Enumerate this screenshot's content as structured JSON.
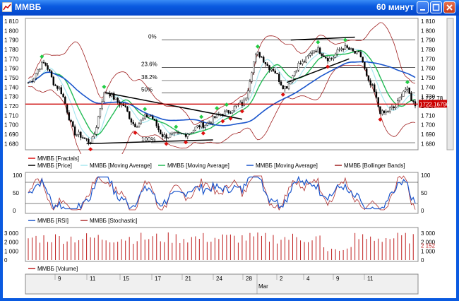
{
  "window": {
    "title": "ММВБ",
    "period": "60 минут",
    "buttons": [
      "minimize",
      "maximize",
      "close"
    ]
  },
  "colors": {
    "price_candles": "#000000",
    "ma_light": "#a8e8f0",
    "ma_green": "#22bb55",
    "ma_blue": "#1a55cc",
    "bollinger": "#a02020",
    "fractal_up": "#22cc44",
    "fractal_down": "#dd1111",
    "support_line": "#cc0000",
    "rsi": "#1a55cc",
    "stochastic": "#b03030",
    "volume": "#c02020"
  },
  "main_panel": {
    "y_axis_ticks": [
      "1 810",
      "1 800",
      "1 790",
      "1 780",
      "1 770",
      "1 760",
      "1 750",
      "1 740",
      "1 730",
      "1 720",
      "1 710",
      "1 700",
      "1 690",
      "1 680"
    ],
    "last_price_label": "1 722.78",
    "crosshair_label": "1722.16796",
    "fibo_levels": [
      "0%",
      "23.6%",
      "38.2%",
      "50%",
      "100%"
    ],
    "legend": [
      {
        "label": "ММВБ [Fractals]"
      },
      {
        "label": "ММВБ [Price]"
      },
      {
        "label": "ММВБ [Moving Average]"
      },
      {
        "label": "ММВБ [Moving Average]"
      },
      {
        "label": "ММВБ [Moving Average]"
      },
      {
        "label": "ММВБ [Bollinger Bands]"
      }
    ]
  },
  "osc_panel": {
    "y_axis_ticks": [
      "100",
      "50",
      "0"
    ],
    "legend": [
      {
        "label": "ММВБ [RSI]"
      },
      {
        "label": "ММВБ [Stochastic]"
      }
    ]
  },
  "volume_panel": {
    "y_axis_ticks": [
      "3 000",
      "2 000",
      "1 000",
      "0"
    ],
    "last_value_label": "2 152",
    "legend": [
      {
        "label": "ММВБ [Volume]"
      }
    ]
  },
  "time_axis": {
    "day_labels": [
      "9",
      "11",
      "15",
      "17",
      "21",
      "24",
      "28",
      "2",
      "4",
      "9",
      "11"
    ],
    "month_label": "Mar"
  }
}
